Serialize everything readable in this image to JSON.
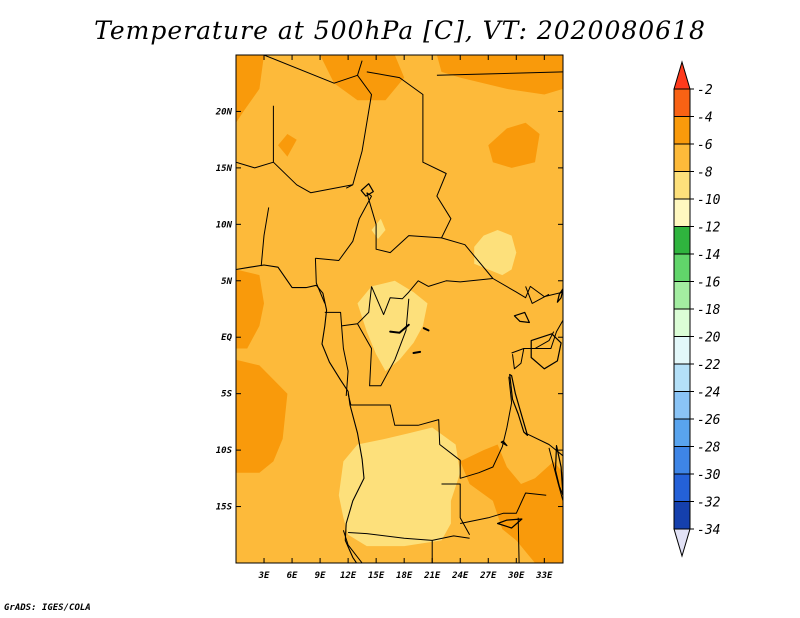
{
  "title": "Temperature at 500hPa [C], VT: 2020080618",
  "credit": "GrADS: IGES/COLA",
  "chart_data": {
    "type": "heatmap",
    "title": "Temperature at 500hPa [C], VT: 2020080618",
    "xlabel": "",
    "ylabel": "",
    "x_ticks": [
      "3E",
      "6E",
      "9E",
      "12E",
      "15E",
      "18E",
      "21E",
      "24E",
      "27E",
      "30E",
      "33E"
    ],
    "y_ticks": [
      "20N",
      "15N",
      "10N",
      "5N",
      "EQ",
      "5S",
      "10S",
      "15S"
    ],
    "x_range": [
      0,
      35
    ],
    "y_range": [
      -20,
      25
    ],
    "colorbar": {
      "placement": "right",
      "labels": [
        "-2",
        "-4",
        "-6",
        "-8",
        "-10",
        "-12",
        "-14",
        "-16",
        "-18",
        "-20",
        "-22",
        "-24",
        "-26",
        "-28",
        "-30",
        "-32",
        "-34"
      ],
      "colors": [
        "#ff3a1c",
        "#f86214",
        "#f99a0b",
        "#fdba3a",
        "#fde07b",
        "#fff8c0",
        "#2fb43e",
        "#61d56a",
        "#a3eda1",
        "#dbfdd6",
        "#e3f8fa",
        "#b4e0f8",
        "#8ac4f6",
        "#59a4ee",
        "#3e85e6",
        "#2461d8",
        "#1540ad",
        "#0a1c73",
        "#e2e2f6"
      ]
    },
    "regions": [
      {
        "level": "-4",
        "points": [
          [
            0,
            25
          ],
          [
            3,
            25
          ],
          [
            2.5,
            22
          ],
          [
            0.8,
            20
          ],
          [
            0,
            19
          ]
        ]
      },
      {
        "level": "-4",
        "points": [
          [
            9,
            25
          ],
          [
            17,
            25
          ],
          [
            18,
            23
          ],
          [
            16,
            21
          ],
          [
            13,
            21
          ],
          [
            10.5,
            22.5
          ]
        ]
      },
      {
        "level": "-4",
        "points": [
          [
            27,
            17
          ],
          [
            29,
            18.5
          ],
          [
            31,
            19
          ],
          [
            32.5,
            18
          ],
          [
            32,
            15.5
          ],
          [
            29.5,
            15
          ],
          [
            27.5,
            15.5
          ]
        ]
      },
      {
        "level": "-4",
        "points": [
          [
            21.5,
            25
          ],
          [
            35,
            25
          ],
          [
            35,
            22
          ],
          [
            33,
            21.5
          ],
          [
            29,
            22
          ],
          [
            24,
            23
          ],
          [
            22,
            23.5
          ]
        ]
      },
      {
        "level": "-4",
        "points": [
          [
            4.5,
            17
          ],
          [
            5.5,
            18
          ],
          [
            6.5,
            17.5
          ],
          [
            5.5,
            16
          ]
        ]
      },
      {
        "level": "-4",
        "points": [
          [
            0,
            6
          ],
          [
            2.5,
            5.5
          ],
          [
            3,
            3
          ],
          [
            2.5,
            1
          ],
          [
            1.2,
            -1
          ],
          [
            0,
            -1
          ]
        ]
      },
      {
        "level": "-4",
        "points": [
          [
            0,
            -2
          ],
          [
            2.5,
            -2.5
          ],
          [
            5.5,
            -5
          ],
          [
            5,
            -9
          ],
          [
            4,
            -11
          ],
          [
            2.5,
            -12
          ],
          [
            0,
            -12
          ]
        ]
      },
      {
        "level": "-4",
        "points": [
          [
            24,
            -11
          ],
          [
            26.5,
            -10
          ],
          [
            28,
            -9.5
          ],
          [
            29,
            -11.5
          ],
          [
            30.5,
            -13
          ],
          [
            32,
            -12.5
          ],
          [
            34,
            -11
          ],
          [
            35,
            -12
          ],
          [
            35,
            -20
          ],
          [
            32,
            -20
          ],
          [
            30,
            -18
          ],
          [
            28.5,
            -17
          ],
          [
            27.5,
            -14.5
          ],
          [
            25,
            -13
          ]
        ]
      },
      {
        "level": "-8",
        "points": [
          [
            13,
            3
          ],
          [
            14.5,
            4.5
          ],
          [
            17,
            5
          ],
          [
            19,
            4
          ],
          [
            20.5,
            3
          ],
          [
            20,
            1
          ],
          [
            19,
            -0.5
          ],
          [
            17.5,
            -2
          ],
          [
            16,
            -3
          ],
          [
            15,
            -1.5
          ],
          [
            14,
            0.5
          ]
        ]
      },
      {
        "level": "-8",
        "points": [
          [
            25.5,
            8
          ],
          [
            26.5,
            9
          ],
          [
            28,
            9.5
          ],
          [
            29.5,
            9
          ],
          [
            30,
            7.5
          ],
          [
            29.5,
            6
          ],
          [
            28.5,
            5.5
          ],
          [
            27,
            6
          ],
          [
            25.5,
            6.5
          ]
        ]
      },
      {
        "level": "-8",
        "points": [
          [
            16,
            -9
          ],
          [
            18.5,
            -8.5
          ],
          [
            21,
            -8
          ],
          [
            23.5,
            -9.5
          ],
          [
            24,
            -12
          ],
          [
            23,
            -14.5
          ],
          [
            23,
            -16.5
          ],
          [
            22,
            -18
          ],
          [
            18,
            -18.5
          ],
          [
            14,
            -18.5
          ],
          [
            12,
            -17.5
          ],
          [
            11.5,
            -16
          ],
          [
            11,
            -14
          ],
          [
            11.5,
            -11
          ],
          [
            13,
            -9.5
          ]
        ]
      },
      {
        "level": "-8",
        "points": [
          [
            14.5,
            9.5
          ],
          [
            15.5,
            10.5
          ],
          [
            16,
            9.5
          ],
          [
            15.2,
            8.7
          ]
        ]
      }
    ],
    "borders": [
      [
        [
          3,
          25
        ],
        [
          10.5,
          22.5
        ],
        [
          13,
          23.2
        ],
        [
          13.5,
          24.5
        ]
      ],
      [
        [
          13,
          23.2
        ],
        [
          14.5,
          21.5
        ],
        [
          13.5,
          16.5
        ],
        [
          12.5,
          13.5
        ],
        [
          11.8,
          13.2
        ]
      ],
      [
        [
          4,
          20.5
        ],
        [
          4,
          15.5
        ],
        [
          6.5,
          13.5
        ],
        [
          8,
          12.8
        ],
        [
          12.5,
          13.5
        ]
      ],
      [
        [
          0,
          15.5
        ],
        [
          2,
          15
        ],
        [
          4,
          15.5
        ]
      ],
      [
        [
          3.5,
          11.5
        ],
        [
          3,
          9
        ],
        [
          2.7,
          6.3
        ]
      ],
      [
        [
          14,
          23.5
        ],
        [
          17.5,
          23
        ],
        [
          20,
          21.5
        ],
        [
          20,
          15.5
        ],
        [
          22.5,
          14.5
        ],
        [
          21.5,
          12.5
        ],
        [
          23,
          10.5
        ],
        [
          22,
          8.8
        ]
      ],
      [
        [
          14,
          12.8
        ],
        [
          15,
          10
        ],
        [
          15,
          7.8
        ],
        [
          16.5,
          7.5
        ],
        [
          18.5,
          9
        ],
        [
          22,
          8.8
        ],
        [
          24.5,
          8.2
        ],
        [
          27.5,
          5.2
        ],
        [
          30,
          4
        ],
        [
          31,
          3.5
        ],
        [
          31.5,
          4.5
        ],
        [
          33,
          3.6
        ],
        [
          35,
          4
        ]
      ],
      [
        [
          8.5,
          7
        ],
        [
          11,
          6.8
        ],
        [
          12.5,
          8.5
        ],
        [
          13.2,
          10.5
        ],
        [
          14.5,
          12.5
        ],
        [
          14,
          12.8
        ]
      ],
      [
        [
          8.5,
          7
        ],
        [
          8.6,
          4.8
        ],
        [
          9.5,
          3
        ]
      ],
      [
        [
          14.5,
          4.5
        ],
        [
          15.8,
          2
        ],
        [
          16.5,
          3.5
        ],
        [
          17.8,
          3.4
        ],
        [
          18.5,
          4
        ],
        [
          19.5,
          5
        ],
        [
          20.6,
          4.5
        ],
        [
          22.5,
          5
        ],
        [
          24,
          4.9
        ],
        [
          27.5,
          5.2
        ]
      ],
      [
        [
          9.5,
          2.2
        ],
        [
          11.2,
          2.2
        ],
        [
          11.3,
          1
        ],
        [
          13,
          1.2
        ],
        [
          14.2,
          2.2
        ],
        [
          14.5,
          4.5
        ]
      ],
      [
        [
          11.3,
          1
        ],
        [
          11.5,
          -1
        ],
        [
          12,
          -3
        ],
        [
          11.8,
          -5.2
        ]
      ],
      [
        [
          13,
          1.2
        ],
        [
          14.5,
          -1
        ],
        [
          14.3,
          -4.3
        ],
        [
          15.5,
          -4.3
        ],
        [
          17,
          -2
        ],
        [
          18.2,
          0.6
        ],
        [
          18.5,
          3.4
        ]
      ],
      [
        [
          12,
          -5
        ],
        [
          12.3,
          -6
        ],
        [
          16.5,
          -6
        ],
        [
          17,
          -7.8
        ],
        [
          19.5,
          -7.8
        ],
        [
          21.7,
          -7.3
        ],
        [
          21.8,
          -9.5
        ],
        [
          24,
          -10.9
        ],
        [
          24,
          -12.5
        ],
        [
          26,
          -12
        ],
        [
          27.5,
          -11.5
        ],
        [
          28.5,
          -9.7
        ],
        [
          29,
          -8
        ],
        [
          29.5,
          -5.8
        ],
        [
          29.2,
          -3.5
        ]
      ],
      [
        [
          12,
          -17.3
        ],
        [
          14,
          -17.4
        ],
        [
          18,
          -17.8
        ],
        [
          21,
          -18
        ],
        [
          23.3,
          -17.6
        ],
        [
          25,
          -17.8
        ]
      ],
      [
        [
          21,
          -18
        ],
        [
          21,
          -21
        ]
      ],
      [
        [
          22,
          -13
        ],
        [
          24,
          -13
        ],
        [
          24,
          -16
        ],
        [
          25,
          -17.5
        ]
      ],
      [
        [
          11.5,
          -17.1
        ],
        [
          12,
          -18.4
        ],
        [
          13.5,
          -20
        ]
      ],
      [
        [
          24,
          -16.5
        ],
        [
          27,
          -16
        ],
        [
          28.6,
          -15.6
        ],
        [
          30,
          -15.6
        ],
        [
          31,
          -13.8
        ],
        [
          33.2,
          -14
        ]
      ],
      [
        [
          30.2,
          -16
        ],
        [
          30.3,
          -20
        ]
      ],
      [
        [
          31,
          -8.5
        ],
        [
          33.5,
          -9.5
        ],
        [
          35,
          -10.5
        ]
      ],
      [
        [
          33.5,
          -9.8
        ],
        [
          34.5,
          -13
        ],
        [
          35,
          -14.5
        ]
      ],
      [
        [
          29.5,
          -1.4
        ],
        [
          30.8,
          -1
        ],
        [
          33.7,
          -1
        ],
        [
          34.3,
          0.5
        ],
        [
          35,
          1.5
        ]
      ],
      [
        [
          29.6,
          -1.5
        ],
        [
          29.8,
          -2.8
        ],
        [
          30.5,
          -2.3
        ],
        [
          30.8,
          -1
        ]
      ],
      [
        [
          21.5,
          23.2
        ],
        [
          35,
          23.5
        ]
      ],
      [
        [
          31,
          4.5
        ],
        [
          31.7,
          3
        ],
        [
          33.5,
          3.8
        ]
      ],
      [
        [
          32,
          -1
        ],
        [
          33.5,
          -0.3
        ],
        [
          34,
          0.5
        ]
      ]
    ],
    "coasts": [
      [
        [
          0,
          6
        ],
        [
          1.5,
          6.2
        ],
        [
          3,
          6.4
        ],
        [
          4.5,
          6.2
        ],
        [
          6,
          4.4
        ],
        [
          7.5,
          4.4
        ],
        [
          8.6,
          4.6
        ],
        [
          9.3,
          3.9
        ],
        [
          9.7,
          2.4
        ],
        [
          9.5,
          1
        ],
        [
          9.2,
          -0.6
        ],
        [
          10,
          -2.2
        ],
        [
          11.2,
          -3.8
        ],
        [
          12,
          -4.8
        ],
        [
          12.2,
          -6
        ],
        [
          13,
          -8.5
        ],
        [
          13.5,
          -10.8
        ],
        [
          13.7,
          -12.5
        ],
        [
          12.5,
          -14.5
        ],
        [
          11.8,
          -16.5
        ],
        [
          11.7,
          -18
        ],
        [
          12.5,
          -19.5
        ],
        [
          13.3,
          -20.5
        ]
      ]
    ],
    "lakes": [
      [
        [
          29.3,
          -3.3
        ],
        [
          29.6,
          -5.5
        ],
        [
          30.2,
          -6.8
        ],
        [
          30.8,
          -8.4
        ],
        [
          31.2,
          -8.7
        ],
        [
          30.6,
          -7
        ],
        [
          29.9,
          -5
        ],
        [
          29.5,
          -3.4
        ]
      ],
      [
        [
          31.6,
          -0.3
        ],
        [
          33.8,
          0.3
        ],
        [
          34.8,
          -0.5
        ],
        [
          34.4,
          -2.1
        ],
        [
          33,
          -2.8
        ],
        [
          31.6,
          -1.8
        ]
      ],
      [
        [
          34.3,
          -9.6
        ],
        [
          34.8,
          -11.5
        ],
        [
          35,
          -14
        ],
        [
          34.6,
          -13.2
        ],
        [
          34.2,
          -11.8
        ]
      ],
      [
        [
          28.4,
          -9.3
        ],
        [
          29,
          -9.6
        ],
        [
          28.6,
          -9.2
        ]
      ],
      [
        [
          29.8,
          1.9
        ],
        [
          30.9,
          2.2
        ],
        [
          31.4,
          1.3
        ],
        [
          30.4,
          1.4
        ]
      ],
      [
        [
          28,
          -16.5
        ],
        [
          29.5,
          -16.9
        ],
        [
          30.6,
          -16.1
        ],
        [
          29,
          -16.2
        ]
      ],
      [
        [
          34.4,
          3.1
        ],
        [
          34.8,
          3.5
        ],
        [
          35,
          4.3
        ],
        [
          34.6,
          3.8
        ]
      ],
      [
        [
          13.4,
          13
        ],
        [
          14.2,
          13.6
        ],
        [
          14.7,
          12.9
        ],
        [
          13.9,
          12.5
        ]
      ]
    ],
    "rivers": [
      [
        [
          16.5,
          0.5
        ],
        [
          17.5,
          0.4
        ],
        [
          18.5,
          1.1
        ]
      ],
      [
        [
          19,
          -1.4
        ],
        [
          19.7,
          -1.3
        ]
      ],
      [
        [
          20.1,
          0.8
        ],
        [
          20.6,
          0.6
        ]
      ]
    ]
  }
}
